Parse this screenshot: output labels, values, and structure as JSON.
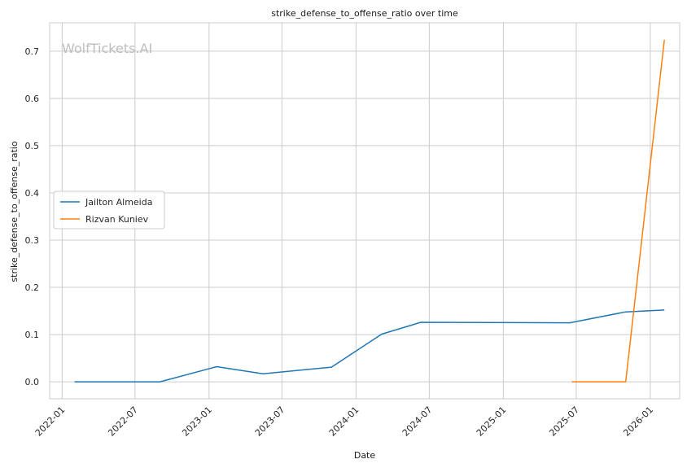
{
  "chart_data": {
    "type": "line",
    "title": "strike_defense_to_offense_ratio over time",
    "xlabel": "Date",
    "ylabel": "strike_defense_to_offense_ratio",
    "watermark": "WolfTickets.AI",
    "x_ticks": [
      "2022-01",
      "2022-07",
      "2023-01",
      "2023-07",
      "2024-01",
      "2024-07",
      "2025-01",
      "2025-07",
      "2026-01"
    ],
    "y_ticks": [
      "0.0",
      "0.1",
      "0.2",
      "0.3",
      "0.4",
      "0.5",
      "0.6",
      "0.7"
    ],
    "xlim": [
      "2021-12-01",
      "2026-03-15"
    ],
    "ylim": [
      -0.036,
      0.76
    ],
    "grid": true,
    "legend_position": "center-left",
    "series": [
      {
        "name": "Jailton Almeida",
        "color": "#1f77b4",
        "points": [
          {
            "x": "2022-02-01",
            "y": 0.0
          },
          {
            "x": "2022-09-01",
            "y": 0.0
          },
          {
            "x": "2023-01-20",
            "y": 0.032
          },
          {
            "x": "2023-05-15",
            "y": 0.017
          },
          {
            "x": "2023-11-01",
            "y": 0.031
          },
          {
            "x": "2024-03-05",
            "y": 0.101
          },
          {
            "x": "2024-06-10",
            "y": 0.126
          },
          {
            "x": "2025-06-15",
            "y": 0.125
          },
          {
            "x": "2025-11-01",
            "y": 0.148
          },
          {
            "x": "2026-02-05",
            "y": 0.152
          }
        ]
      },
      {
        "name": "Rizvan Kuniev",
        "color": "#ff7f0e",
        "points": [
          {
            "x": "2025-06-20",
            "y": 0.0
          },
          {
            "x": "2025-11-01",
            "y": 0.0
          },
          {
            "x": "2026-02-05",
            "y": 0.724
          }
        ]
      }
    ]
  }
}
